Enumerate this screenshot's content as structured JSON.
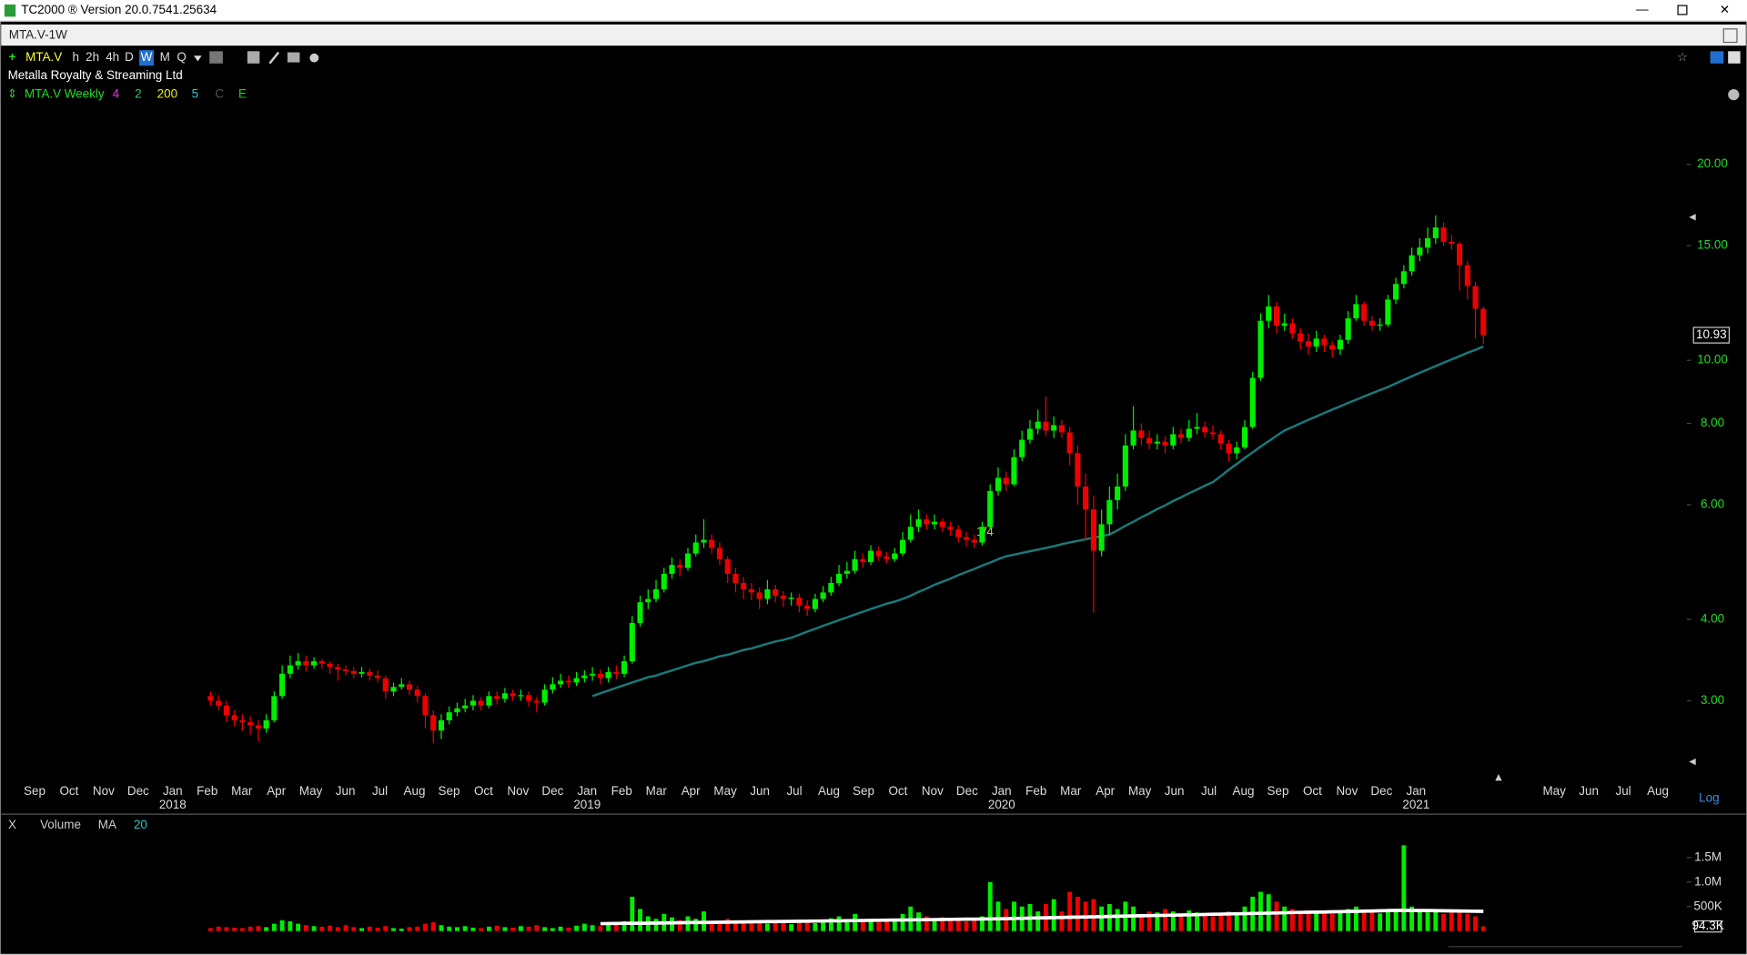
{
  "ui": {
    "window_title": "TC2000 ® Version 20.0.7541.25634",
    "tab": "MTA.V-1W",
    "symbol": "MTA.V",
    "timeframes": [
      "h",
      "2h",
      "4h",
      "D",
      "W",
      "M",
      "Q"
    ],
    "company": "Metalla Royalty & Streaming Ltd",
    "indicators": [
      "MTA.V Weekly",
      "4",
      "2",
      "200",
      "5",
      "C",
      "E"
    ],
    "scale_mode": "Log",
    "volume_pane": [
      "X",
      "Volume",
      "MA",
      "20"
    ],
    "event_marker": "1/4"
  },
  "chart_data": {
    "type": "candlestick",
    "log_scale": true,
    "up_color": "#00ee00",
    "down_color": "#ee0000",
    "ma_color": "#1b7a7a",
    "volume_ma_color": "#ffffff",
    "months": [
      "Sep",
      "Oct",
      "Nov",
      "Dec",
      "Jan",
      "Feb",
      "Mar",
      "Apr",
      "May",
      "Jun",
      "Jul",
      "Aug",
      "Sep",
      "Oct",
      "Nov",
      "Dec",
      "Jan",
      "Feb",
      "Mar",
      "Apr",
      "May",
      "Jun",
      "Jul",
      "Aug",
      "Sep",
      "Oct",
      "Nov",
      "Dec",
      "Jan",
      "Feb",
      "Mar",
      "Apr",
      "May",
      "Jun",
      "Jul",
      "Aug",
      "Sep",
      "Oct",
      "Nov",
      "Dec",
      "Jan",
      null,
      null,
      null,
      "May",
      "Jun",
      "Jul",
      "Aug"
    ],
    "years": [
      "2018",
      "2019",
      "2020",
      "2021"
    ],
    "ylim": [
      2.27,
      24.6
    ],
    "yticks": [
      {
        "value": 20,
        "label": "20.00"
      },
      {
        "value": 15,
        "label": "15.00"
      },
      {
        "value": 10,
        "label": "10.00"
      },
      {
        "value": 8,
        "label": "8.00"
      },
      {
        "value": 6,
        "label": "6.00"
      },
      {
        "value": 4,
        "label": "4.00"
      },
      {
        "value": 3,
        "label": "3.00"
      }
    ],
    "open": [
      3.05,
      3.0,
      2.95,
      2.85,
      2.8,
      2.78,
      2.75,
      2.72,
      2.8,
      3.05,
      3.3,
      3.4,
      3.45,
      3.4,
      3.45,
      3.42,
      3.38,
      3.35,
      3.33,
      3.3,
      3.32,
      3.28,
      3.25,
      3.1,
      3.15,
      3.18,
      3.12,
      3.05,
      2.85,
      2.7,
      2.8,
      2.88,
      2.92,
      2.95,
      3.0,
      2.95,
      3.05,
      3.02,
      3.08,
      3.05,
      3.06,
      3.0,
      2.98,
      3.12,
      3.18,
      3.22,
      3.2,
      3.25,
      3.28,
      3.3,
      3.25,
      3.32,
      3.3,
      3.45,
      3.95,
      4.25,
      4.3,
      4.45,
      4.7,
      4.85,
      4.8,
      5.05,
      5.25,
      5.3,
      5.15,
      4.95,
      4.7,
      4.55,
      4.45,
      4.4,
      4.3,
      4.45,
      4.35,
      4.3,
      4.32,
      4.2,
      4.15,
      4.3,
      4.4,
      4.55,
      4.7,
      4.75,
      4.95,
      4.9,
      5.1,
      5.0,
      4.95,
      5.05,
      5.3,
      5.55,
      5.7,
      5.6,
      5.65,
      5.55,
      5.5,
      5.35,
      5.3,
      5.25,
      5.55,
      6.3,
      6.6,
      6.45,
      7.1,
      7.55,
      7.85,
      8.05,
      7.8,
      7.95,
      7.75,
      7.2,
      6.4,
      5.9,
      5.1,
      5.6,
      6.1,
      6.4,
      7.4,
      7.8,
      7.6,
      7.45,
      7.5,
      7.4,
      7.7,
      7.6,
      7.85,
      7.9,
      7.75,
      7.7,
      7.45,
      7.2,
      7.35,
      7.9,
      9.4,
      11.5,
      12.1,
      11.3,
      11.4,
      11.0,
      10.7,
      10.5,
      10.8,
      10.55,
      10.4,
      10.75,
      11.6,
      12.2,
      11.5,
      11.3,
      11.35,
      12.4,
      13.1,
      13.7,
      14.5,
      14.9,
      15.4,
      16.0,
      15.2,
      15.1,
      14.0,
      13.0,
      12.0
    ],
    "high": [
      3.1,
      3.06,
      3.0,
      2.9,
      2.86,
      2.84,
      2.8,
      2.86,
      3.1,
      3.4,
      3.52,
      3.55,
      3.52,
      3.5,
      3.48,
      3.45,
      3.42,
      3.4,
      3.38,
      3.38,
      3.36,
      3.34,
      3.28,
      3.2,
      3.25,
      3.22,
      3.16,
      3.08,
      2.9,
      2.86,
      2.94,
      2.98,
      3.02,
      3.06,
      3.04,
      3.1,
      3.1,
      3.14,
      3.12,
      3.12,
      3.1,
      3.04,
      3.18,
      3.26,
      3.3,
      3.28,
      3.32,
      3.34,
      3.38,
      3.35,
      3.38,
      3.4,
      3.52,
      4.05,
      4.35,
      4.45,
      4.6,
      4.8,
      4.98,
      4.95,
      5.15,
      5.4,
      5.7,
      5.4,
      5.25,
      5.0,
      4.8,
      4.65,
      4.55,
      4.48,
      4.6,
      4.52,
      4.42,
      4.4,
      4.38,
      4.28,
      4.38,
      4.5,
      4.65,
      4.85,
      4.9,
      5.1,
      5.05,
      5.2,
      5.18,
      5.08,
      5.15,
      5.45,
      5.8,
      5.9,
      5.8,
      5.8,
      5.72,
      5.65,
      5.58,
      5.45,
      5.4,
      5.65,
      6.45,
      6.85,
      6.75,
      7.3,
      7.8,
      8.1,
      8.4,
      8.8,
      8.2,
      8.1,
      7.9,
      7.4,
      6.7,
      6.2,
      5.9,
      6.4,
      6.7,
      7.7,
      8.5,
      8.0,
      7.8,
      7.7,
      7.65,
      7.9,
      7.85,
      8.1,
      8.3,
      8.05,
      7.95,
      7.8,
      7.55,
      7.5,
      8.1,
      9.6,
      11.8,
      12.6,
      12.3,
      11.8,
      11.6,
      11.2,
      11.0,
      11.1,
      10.95,
      10.7,
      10.95,
      11.9,
      12.6,
      12.3,
      11.7,
      11.6,
      12.6,
      13.4,
      14.0,
      14.9,
      15.4,
      16.0,
      16.7,
      16.3,
      15.6,
      15.2,
      14.2,
      13.2,
      12.1
    ],
    "low": [
      2.95,
      2.9,
      2.78,
      2.74,
      2.7,
      2.66,
      2.6,
      2.68,
      2.78,
      3.02,
      3.25,
      3.35,
      3.33,
      3.36,
      3.36,
      3.3,
      3.22,
      3.28,
      3.25,
      3.26,
      3.22,
      3.2,
      3.02,
      3.05,
      3.12,
      3.06,
      2.98,
      2.72,
      2.58,
      2.62,
      2.76,
      2.84,
      2.88,
      2.9,
      2.9,
      2.92,
      2.96,
      2.98,
      3.0,
      3.0,
      2.94,
      2.88,
      2.95,
      3.08,
      3.14,
      3.14,
      3.16,
      3.2,
      3.22,
      3.18,
      3.2,
      3.24,
      3.26,
      3.42,
      3.9,
      4.15,
      4.25,
      4.4,
      4.62,
      4.66,
      4.75,
      5.0,
      5.15,
      5.05,
      4.85,
      4.55,
      4.4,
      4.3,
      4.28,
      4.15,
      4.22,
      4.25,
      4.18,
      4.2,
      4.1,
      4.05,
      4.1,
      4.25,
      4.35,
      4.5,
      4.62,
      4.7,
      4.8,
      4.85,
      4.92,
      4.88,
      4.9,
      5.0,
      5.25,
      5.45,
      5.5,
      5.5,
      5.45,
      5.38,
      5.25,
      5.18,
      5.15,
      5.2,
      5.5,
      6.2,
      6.3,
      6.4,
      7.0,
      7.45,
      7.7,
      7.65,
      7.6,
      7.6,
      6.9,
      6.0,
      5.3,
      4.1,
      5.0,
      5.4,
      5.9,
      6.3,
      7.3,
      7.4,
      7.3,
      7.3,
      7.2,
      7.3,
      7.45,
      7.5,
      7.7,
      7.6,
      7.55,
      7.3,
      7.0,
      7.05,
      7.3,
      7.85,
      9.3,
      11.2,
      11.0,
      11.1,
      10.8,
      10.4,
      10.2,
      10.3,
      10.3,
      10.1,
      10.2,
      10.6,
      11.5,
      11.3,
      11.1,
      11.1,
      11.25,
      12.2,
      12.9,
      13.5,
      14.2,
      14.6,
      15.1,
      15.0,
      14.8,
      12.8,
      12.4,
      10.8,
      10.6
    ],
    "close": [
      3.0,
      2.95,
      2.85,
      2.8,
      2.78,
      2.75,
      2.72,
      2.8,
      3.05,
      3.3,
      3.4,
      3.45,
      3.4,
      3.45,
      3.42,
      3.38,
      3.35,
      3.33,
      3.3,
      3.32,
      3.28,
      3.25,
      3.1,
      3.15,
      3.18,
      3.12,
      3.05,
      2.85,
      2.7,
      2.8,
      2.88,
      2.92,
      2.95,
      3.0,
      2.95,
      3.05,
      3.02,
      3.08,
      3.05,
      3.06,
      3.0,
      2.98,
      3.12,
      3.18,
      3.22,
      3.2,
      3.25,
      3.28,
      3.3,
      3.25,
      3.32,
      3.3,
      3.45,
      3.95,
      4.25,
      4.3,
      4.45,
      4.7,
      4.85,
      4.8,
      5.05,
      5.25,
      5.3,
      5.15,
      4.95,
      4.7,
      4.55,
      4.45,
      4.4,
      4.3,
      4.45,
      4.35,
      4.3,
      4.32,
      4.2,
      4.15,
      4.3,
      4.4,
      4.55,
      4.7,
      4.75,
      4.95,
      4.9,
      5.1,
      5.0,
      4.95,
      5.05,
      5.3,
      5.55,
      5.7,
      5.6,
      5.65,
      5.55,
      5.5,
      5.35,
      5.3,
      5.25,
      5.55,
      6.3,
      6.6,
      6.45,
      7.1,
      7.55,
      7.85,
      8.05,
      7.8,
      7.95,
      7.75,
      7.2,
      6.4,
      5.9,
      5.1,
      5.6,
      6.1,
      6.4,
      7.4,
      7.8,
      7.6,
      7.45,
      7.5,
      7.4,
      7.7,
      7.6,
      7.85,
      7.9,
      7.75,
      7.7,
      7.45,
      7.2,
      7.35,
      7.9,
      9.4,
      11.5,
      12.1,
      11.3,
      11.4,
      11.0,
      10.7,
      10.5,
      10.8,
      10.55,
      10.4,
      10.75,
      11.6,
      12.2,
      11.5,
      11.3,
      11.35,
      12.4,
      13.1,
      13.7,
      14.5,
      14.9,
      15.4,
      16.0,
      15.2,
      15.1,
      14.0,
      13.0,
      12.0,
      10.93
    ],
    "ma": [
      null,
      null,
      null,
      null,
      null,
      null,
      null,
      null,
      null,
      null,
      null,
      null,
      null,
      null,
      null,
      null,
      null,
      null,
      null,
      null,
      null,
      null,
      null,
      null,
      null,
      null,
      null,
      null,
      null,
      null,
      null,
      null,
      null,
      null,
      null,
      null,
      null,
      null,
      null,
      null,
      null,
      null,
      null,
      null,
      null,
      null,
      null,
      null,
      3.05,
      3.08,
      3.11,
      3.14,
      3.17,
      3.2,
      3.23,
      3.26,
      3.28,
      3.31,
      3.34,
      3.37,
      3.4,
      3.43,
      3.45,
      3.48,
      3.51,
      3.53,
      3.56,
      3.59,
      3.61,
      3.64,
      3.67,
      3.7,
      3.72,
      3.75,
      3.79,
      3.83,
      3.87,
      3.91,
      3.95,
      3.99,
      4.03,
      4.07,
      4.11,
      4.15,
      4.19,
      4.23,
      4.26,
      4.3,
      4.35,
      4.41,
      4.46,
      4.52,
      4.57,
      4.62,
      4.68,
      4.73,
      4.78,
      4.84,
      4.89,
      4.95,
      5.0,
      5.03,
      5.06,
      5.09,
      5.12,
      5.15,
      5.18,
      5.22,
      5.25,
      5.28,
      5.31,
      5.34,
      5.37,
      5.4,
      5.48,
      5.57,
      5.65,
      5.74,
      5.82,
      5.91,
      5.99,
      6.08,
      6.16,
      6.25,
      6.33,
      6.42,
      6.5,
      6.64,
      6.79,
      6.93,
      7.08,
      7.22,
      7.37,
      7.51,
      7.66,
      7.8,
      7.9,
      8.0,
      8.1,
      8.2,
      8.3,
      8.4,
      8.5,
      8.6,
      8.7,
      8.8,
      8.9,
      9.0,
      9.1,
      9.22,
      9.33,
      9.45,
      9.57,
      9.68,
      9.8,
      9.92,
      10.03,
      10.15,
      10.27,
      10.38,
      10.5
    ],
    "volume": [
      60000,
      90000,
      80000,
      70000,
      60000,
      90000,
      100000,
      80000,
      150000,
      220000,
      200000,
      150000,
      120000,
      100000,
      90000,
      110000,
      80000,
      120000,
      80000,
      60000,
      90000,
      70000,
      100000,
      60000,
      50000,
      80000,
      90000,
      150000,
      180000,
      120000,
      90000,
      80000,
      100000,
      70000,
      60000,
      90000,
      110000,
      80000,
      70000,
      100000,
      90000,
      120000,
      80000,
      60000,
      90000,
      70000,
      110000,
      150000,
      120000,
      100000,
      180000,
      150000,
      200000,
      700000,
      450000,
      300000,
      250000,
      350000,
      280000,
      220000,
      300000,
      250000,
      400000,
      200000,
      180000,
      250000,
      220000,
      180000,
      150000,
      200000,
      150000,
      180000,
      160000,
      140000,
      190000,
      220000,
      160000,
      180000,
      260000,
      300000,
      220000,
      350000,
      200000,
      240000,
      180000,
      220000,
      200000,
      350000,
      500000,
      380000,
      300000,
      250000,
      280000,
      220000,
      260000,
      200000,
      240000,
      300000,
      1000000,
      600000,
      450000,
      600000,
      500000,
      550000,
      400000,
      550000,
      650000,
      400000,
      800000,
      700000,
      600000,
      650000,
      500000,
      550000,
      450000,
      600000,
      500000,
      350000,
      400000,
      380000,
      450000,
      400000,
      360000,
      420000,
      380000,
      350000,
      300000,
      350000,
      400000,
      380000,
      500000,
      700000,
      800000,
      750000,
      600000,
      500000,
      450000,
      400000,
      420000,
      380000,
      400000,
      350000,
      420000,
      450000,
      500000,
      400000,
      380000,
      360000,
      420000,
      450000,
      1750000,
      500000,
      420000,
      380000,
      400000,
      350000,
      380000,
      400000,
      350000,
      300000,
      94300
    ],
    "volume_ma": [
      null,
      null,
      null,
      null,
      null,
      null,
      null,
      null,
      null,
      null,
      null,
      null,
      null,
      null,
      null,
      null,
      null,
      null,
      null,
      null,
      null,
      null,
      null,
      null,
      null,
      null,
      null,
      null,
      null,
      null,
      null,
      null,
      null,
      null,
      null,
      null,
      null,
      null,
      null,
      null,
      null,
      null,
      null,
      null,
      null,
      null,
      null,
      null,
      null,
      150000,
      152000,
      154000,
      156000,
      158000,
      160000,
      162000,
      164000,
      166000,
      168000,
      170000,
      172000,
      174000,
      176000,
      178000,
      180000,
      182000,
      184000,
      186000,
      188000,
      190000,
      192000,
      194000,
      196000,
      198000,
      200000,
      202000,
      204000,
      206000,
      208000,
      210000,
      212000,
      214000,
      216000,
      218000,
      220000,
      222000,
      224000,
      226000,
      228000,
      230000,
      232000,
      234000,
      236000,
      238000,
      240000,
      242000,
      244000,
      246000,
      248000,
      250000,
      253000,
      257000,
      260000,
      264000,
      267000,
      270000,
      274000,
      277000,
      281000,
      284000,
      287000,
      291000,
      294000,
      298000,
      301000,
      304000,
      308000,
      311000,
      315000,
      318000,
      321000,
      325000,
      328000,
      332000,
      335000,
      338000,
      342000,
      345000,
      349000,
      352000,
      355000,
      359000,
      362000,
      366000,
      369000,
      372000,
      376000,
      379000,
      383000,
      386000,
      389000,
      393000,
      396000,
      400000,
      403000,
      406000,
      410000,
      413000,
      417000,
      420000,
      423000,
      421000,
      419000,
      417000,
      415000,
      413000,
      411000,
      409000,
      407000,
      405000,
      403000
    ],
    "last_volume_label": "94.3K",
    "vlim": [
      0,
      1840000
    ],
    "vticks": [
      {
        "value": 1500000,
        "label": "1.5M"
      },
      {
        "value": 1000000,
        "label": "1.0M"
      },
      {
        "value": 500000,
        "label": "500K"
      }
    ]
  }
}
